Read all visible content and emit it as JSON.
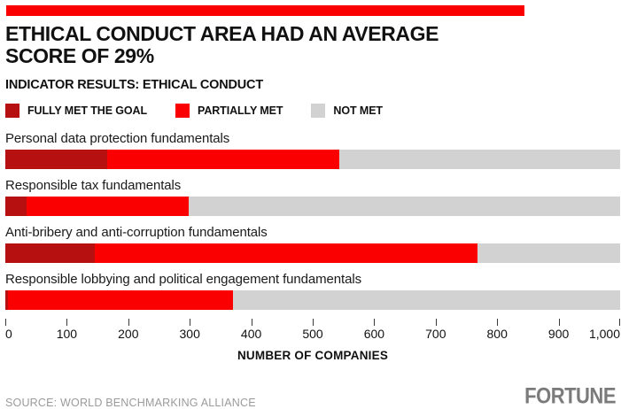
{
  "page": {
    "top_bar_color": "#fa0000"
  },
  "header": {
    "title_lines": [
      "ETHICAL CONDUCT AREA HAD AN AVERAGE",
      "SCORE OF 29%"
    ],
    "subtitle": "INDICATOR RESULTS: ETHICAL CONDUCT"
  },
  "chart_data": {
    "type": "bar",
    "orientation": "horizontal",
    "stacked": true,
    "title": "INDICATOR RESULTS: ETHICAL CONDUCT",
    "categories": [
      "Personal data protection fundamentals",
      "Responsible tax fundamentals",
      "Anti-bribery and anti-corruption fundamentals",
      "Responsible lobbying and political engagement fundamentals"
    ],
    "series": [
      {
        "name": "FULLY MET THE GOAL",
        "color": "#b71010",
        "values": [
          165,
          35,
          145,
          5
        ]
      },
      {
        "name": "PARTIALLY MET",
        "color": "#fa0000",
        "values": [
          378,
          263,
          623,
          365
        ]
      },
      {
        "name": "NOT MET",
        "color": "#d2d2d2",
        "values": [
          457,
          702,
          232,
          630
        ]
      }
    ],
    "xlabel": "NUMBER OF COMPANIES",
    "xlim": [
      0,
      1000
    ],
    "x_ticks": [
      0,
      100,
      200,
      300,
      400,
      500,
      600,
      700,
      800,
      900,
      1000
    ],
    "x_tick_labels": [
      "0",
      "100",
      "200",
      "300",
      "400",
      "500",
      "600",
      "700",
      "800",
      "900",
      "1,000"
    ],
    "legend_position": "top",
    "grid": false
  },
  "footer": {
    "source": "SOURCE: WORLD BENCHMARKING ALLIANCE",
    "brand": "FORTUNE"
  }
}
